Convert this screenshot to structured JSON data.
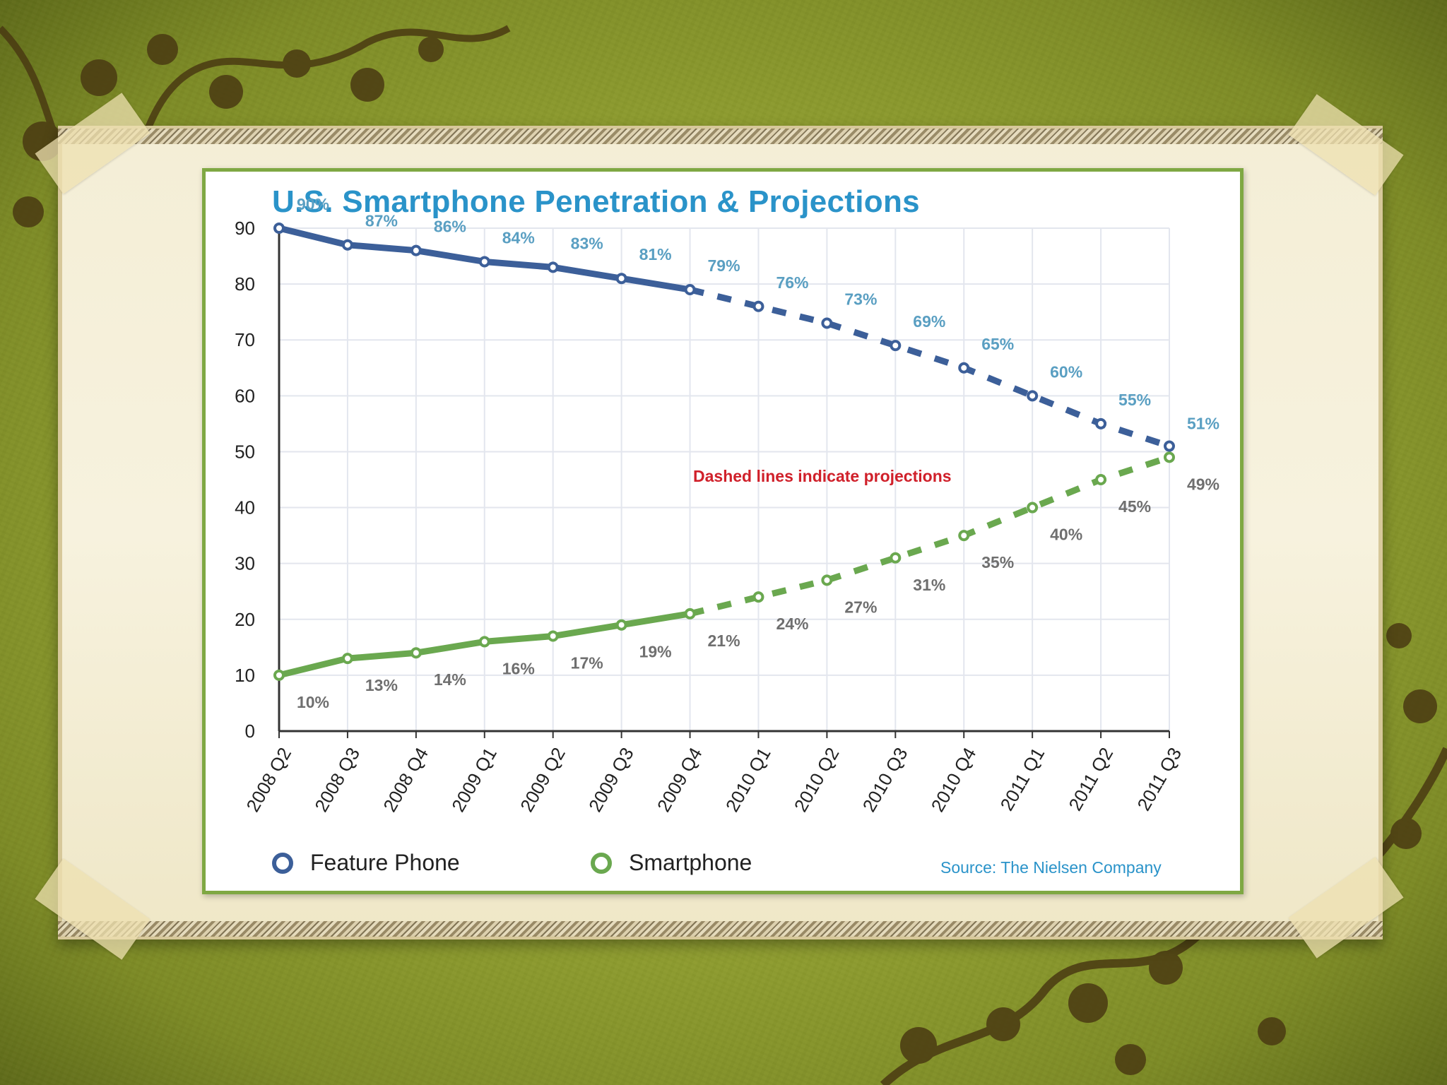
{
  "colors": {
    "feature": "#3c5f99",
    "smart": "#6aa84f",
    "feature_label": "#5a9fc2",
    "smart_label": "#6f6f6f",
    "title": "#2a93c9",
    "note": "#d0202a"
  },
  "chart_data": {
    "type": "line",
    "title": "U.S. Smartphone Penetration & Projections",
    "xlabel": "",
    "ylabel": "",
    "ylim": [
      0,
      90
    ],
    "yticks": [
      "0",
      "10",
      "20",
      "30",
      "40",
      "50",
      "60",
      "70",
      "80",
      "90"
    ],
    "categories": [
      "2008 Q2",
      "2008 Q3",
      "2008 Q4",
      "2009 Q1",
      "2009 Q2",
      "2009 Q3",
      "2009 Q4",
      "2010 Q1",
      "2010 Q2",
      "2010 Q3",
      "2010 Q4",
      "2011 Q1",
      "2011 Q2",
      "2011 Q3"
    ],
    "actual_through_index": 6,
    "series": [
      {
        "name": "Feature Phone",
        "values": [
          90,
          87,
          86,
          84,
          83,
          81,
          79,
          76,
          73,
          69,
          65,
          60,
          55,
          51
        ],
        "labels": [
          "90%",
          "87%",
          "86%",
          "84%",
          "83%",
          "81%",
          "79%",
          "76%",
          "73%",
          "69%",
          "65%",
          "60%",
          "55%",
          "51%"
        ]
      },
      {
        "name": "Smartphone",
        "values": [
          10,
          13,
          14,
          16,
          17,
          19,
          21,
          24,
          27,
          31,
          35,
          40,
          45,
          49
        ],
        "labels": [
          "10%",
          "13%",
          "14%",
          "16%",
          "17%",
          "19%",
          "21%",
          "24%",
          "27%",
          "31%",
          "35%",
          "40%",
          "45%",
          "49%"
        ]
      }
    ],
    "annotation": "Dashed lines indicate projections",
    "source": "Source: The Nielsen Company"
  }
}
